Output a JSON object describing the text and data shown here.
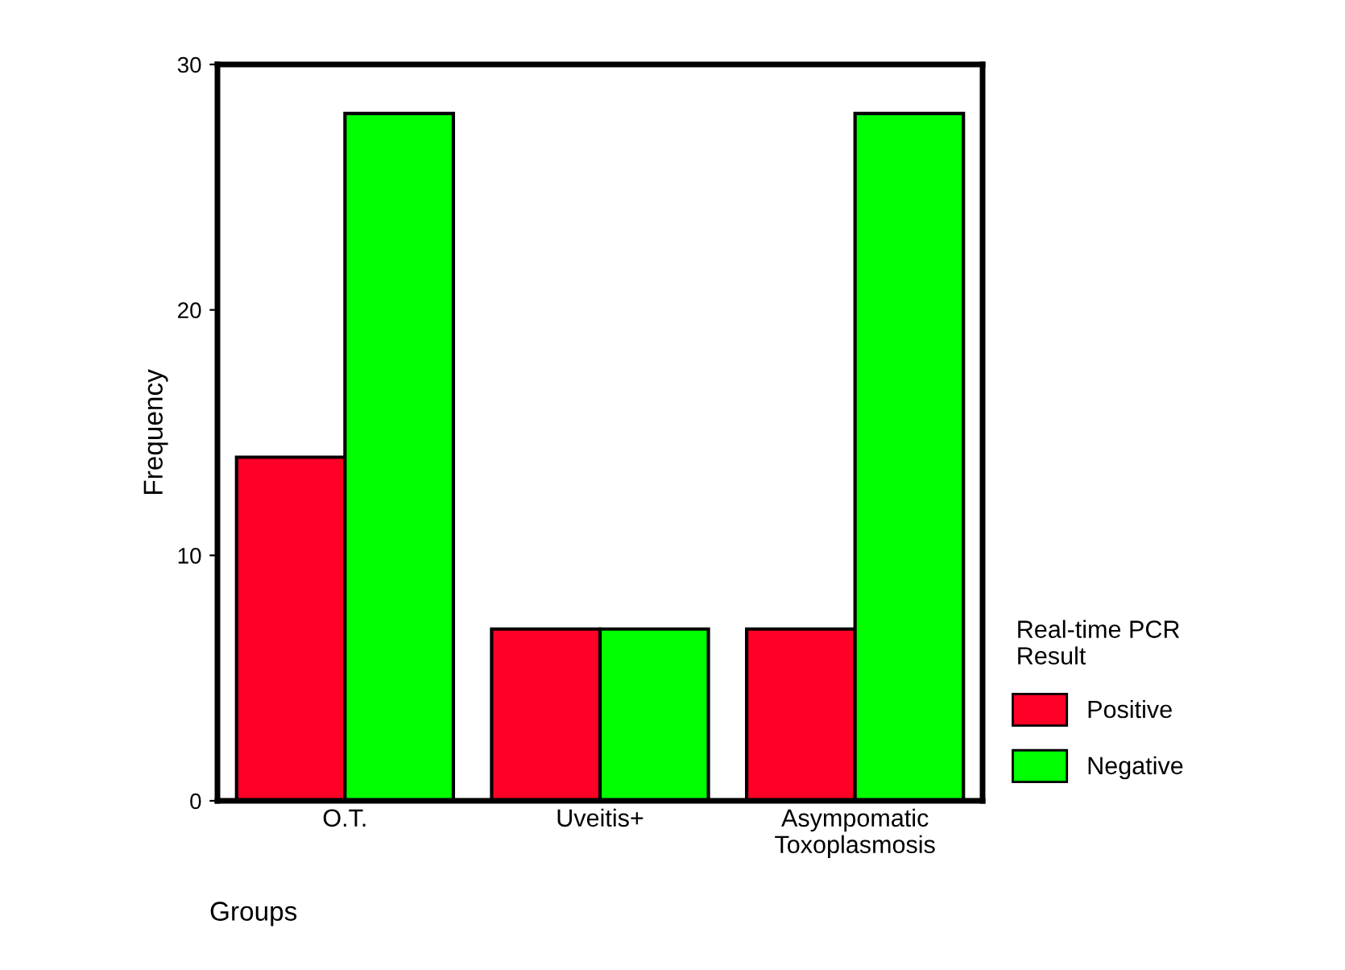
{
  "chart_data": {
    "type": "bar",
    "xlabel": "Groups",
    "ylabel": "Frequency",
    "legend_title": "Real-time PCR\nResult",
    "categories": [
      "O.T.",
      "Uveitis+",
      "Asympomatic\nToxoplasmosis"
    ],
    "series": [
      {
        "name": "Positive",
        "color": "#ff0026",
        "values": [
          14,
          7,
          7
        ]
      },
      {
        "name": "Negative",
        "color": "#00ff00",
        "values": [
          28,
          7,
          28
        ]
      }
    ],
    "ylim": [
      0,
      30
    ],
    "yticks": [
      0,
      10,
      20,
      30
    ],
    "legend": "right",
    "grid": false
  }
}
